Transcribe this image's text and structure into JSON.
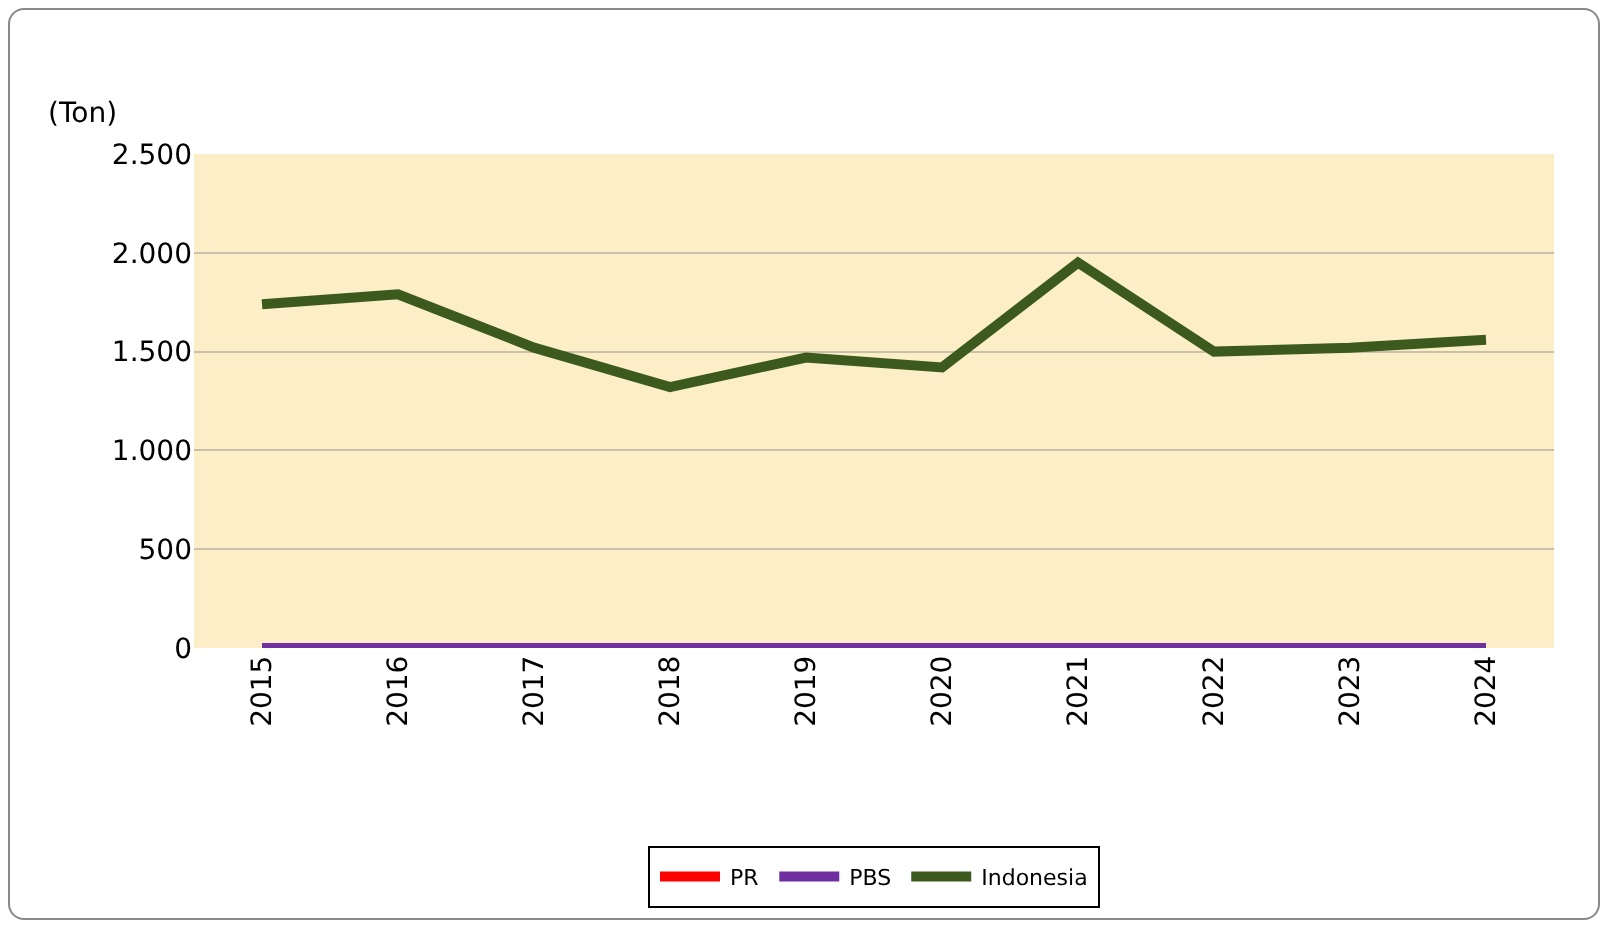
{
  "chart_data": {
    "type": "line",
    "ylabel": "(Ton)",
    "categories": [
      "2015",
      "2016",
      "2017",
      "2018",
      "2019",
      "2020",
      "2021",
      "2022",
      "2023",
      "2024"
    ],
    "series": [
      {
        "name": "PR",
        "color": "#ff0000",
        "values": [
          null,
          null,
          null,
          null,
          null,
          null,
          null,
          null,
          null,
          null
        ]
      },
      {
        "name": "PBS",
        "color": "#7030a0",
        "values": [
          0,
          0,
          0,
          0,
          0,
          0,
          0,
          0,
          0,
          0
        ]
      },
      {
        "name": "Indonesia",
        "color": "#3d5a1e",
        "values": [
          1740,
          1790,
          1520,
          1320,
          1470,
          1420,
          1950,
          1500,
          1520,
          1560
        ]
      }
    ],
    "ylim": [
      0,
      2500
    ],
    "yticks": [
      {
        "value": 0,
        "label": "0"
      },
      {
        "value": 500,
        "label": "500"
      },
      {
        "value": 1000,
        "label": "1.000"
      },
      {
        "value": 1500,
        "label": "1.500"
      },
      {
        "value": 2000,
        "label": "2.000"
      },
      {
        "value": 2500,
        "label": "2.500"
      }
    ],
    "grid": "y",
    "legend": "bottom",
    "marker": "none",
    "line_style": "solid"
  }
}
